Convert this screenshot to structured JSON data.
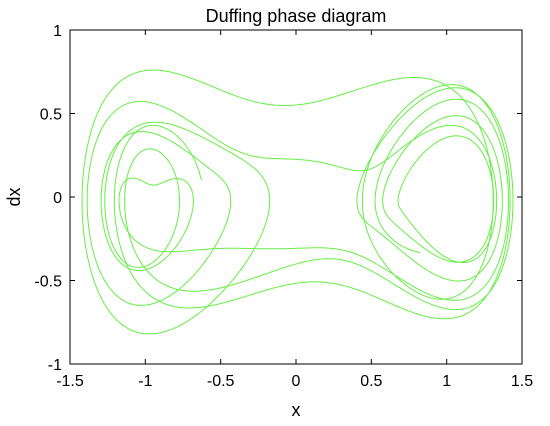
{
  "chart_data": {
    "type": "line",
    "title": "Duffing phase diagram",
    "xlabel": "x",
    "ylabel": "dx",
    "xlim": [
      -1.5,
      1.5
    ],
    "ylim": [
      -1,
      1
    ],
    "x_ticks": [
      -1.5,
      -1,
      -0.5,
      0,
      0.5,
      1,
      1.5
    ],
    "x_tick_labels": [
      "-1.5",
      "-1",
      "-0.5",
      "0",
      "0.5",
      "1",
      "1.5"
    ],
    "y_ticks": [
      -1,
      -0.5,
      0,
      0.5,
      1
    ],
    "y_tick_labels": [
      "-1",
      "-0.5",
      "0",
      "0.5",
      "1"
    ],
    "grid": false,
    "legend": "none",
    "series": [
      {
        "color": "#66ee44",
        "description_values": "trajectory (x, dx) of a forced Duffing oscillator",
        "x_range": [
          -1.42,
          1.44
        ],
        "y_range": [
          -0.82,
          0.76
        ]
      }
    ]
  }
}
